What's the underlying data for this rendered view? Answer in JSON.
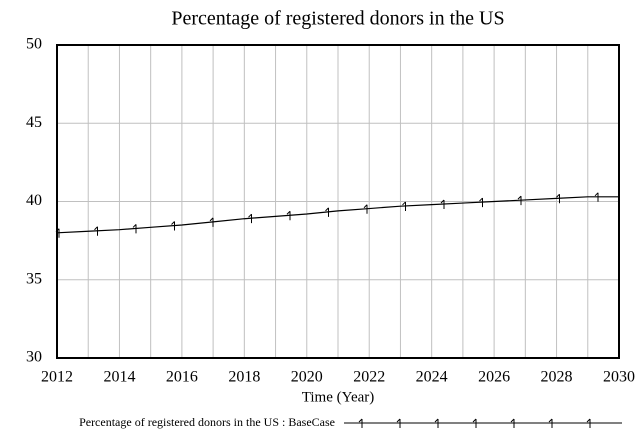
{
  "chart_data": {
    "type": "line",
    "title": "Percentage of registered donors in the US",
    "x_label": "Time (Year)",
    "x": [
      2012,
      2013,
      2014,
      2015,
      2016,
      2017,
      2018,
      2019,
      2020,
      2021,
      2022,
      2023,
      2024,
      2025,
      2026,
      2027,
      2028,
      2029,
      2030
    ],
    "series": [
      {
        "name": "Percentage of registered donors in the US : BaseCase",
        "color": "#000000",
        "values": [
          38.0,
          38.1,
          38.2,
          38.35,
          38.5,
          38.7,
          38.9,
          39.05,
          39.2,
          39.4,
          39.55,
          39.7,
          39.8,
          39.9,
          40.0,
          40.1,
          40.2,
          40.3,
          40.3
        ]
      }
    ],
    "xlim": [
      2012,
      2030
    ],
    "xticks": [
      2012,
      2014,
      2016,
      2018,
      2020,
      2022,
      2024,
      2026,
      2028,
      2030
    ],
    "ylim": [
      30,
      50
    ],
    "yticks": [
      30,
      35,
      40,
      45,
      50
    ],
    "grid": true
  }
}
